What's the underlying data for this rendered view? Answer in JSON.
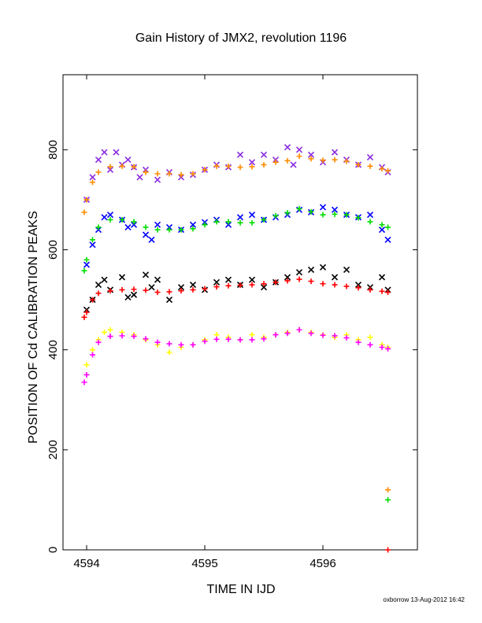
{
  "chart_data": {
    "type": "scatter",
    "title": "Gain History of JMX2, revolution 1196",
    "xlabel": "TIME IN IJD",
    "ylabel": "POSITION OF Cd CALIBRATION PEAKS",
    "xlim": [
      4593.8,
      4596.8
    ],
    "ylim": [
      0,
      950
    ],
    "xticks": [
      4594,
      4595,
      4596
    ],
    "yticks": [
      0,
      200,
      400,
      600,
      800
    ],
    "grid": false,
    "legend": "none",
    "series": [
      {
        "color": "#8a2be2",
        "marker": "x",
        "points": [
          [
            4594.0,
            700
          ],
          [
            4594.05,
            745
          ],
          [
            4594.1,
            780
          ],
          [
            4594.15,
            795
          ],
          [
            4594.2,
            760
          ],
          [
            4594.25,
            795
          ],
          [
            4594.3,
            770
          ],
          [
            4594.35,
            780
          ],
          [
            4594.4,
            765
          ],
          [
            4594.45,
            745
          ],
          [
            4594.5,
            760
          ],
          [
            4594.6,
            740
          ],
          [
            4594.7,
            755
          ],
          [
            4594.8,
            745
          ],
          [
            4594.9,
            750
          ],
          [
            4595.0,
            760
          ],
          [
            4595.1,
            770
          ],
          [
            4595.2,
            765
          ],
          [
            4595.3,
            790
          ],
          [
            4595.4,
            775
          ],
          [
            4595.5,
            790
          ],
          [
            4595.6,
            780
          ],
          [
            4595.7,
            805
          ],
          [
            4595.75,
            770
          ],
          [
            4595.8,
            800
          ],
          [
            4595.9,
            790
          ],
          [
            4596.0,
            775
          ],
          [
            4596.1,
            795
          ],
          [
            4596.2,
            780
          ],
          [
            4596.3,
            770
          ],
          [
            4596.4,
            785
          ],
          [
            4596.5,
            765
          ],
          [
            4596.55,
            755
          ]
        ]
      },
      {
        "color": "#ff8c00",
        "marker": "+",
        "points": [
          [
            4593.98,
            675
          ],
          [
            4594.0,
            700
          ],
          [
            4594.05,
            735
          ],
          [
            4594.1,
            755
          ],
          [
            4594.2,
            766
          ],
          [
            4594.3,
            767
          ],
          [
            4594.4,
            766
          ],
          [
            4594.5,
            755
          ],
          [
            4594.6,
            752
          ],
          [
            4594.7,
            752
          ],
          [
            4594.8,
            750
          ],
          [
            4594.9,
            752
          ],
          [
            4595.0,
            760
          ],
          [
            4595.1,
            767
          ],
          [
            4595.2,
            767
          ],
          [
            4595.3,
            765
          ],
          [
            4595.4,
            766
          ],
          [
            4595.5,
            770
          ],
          [
            4595.6,
            775
          ],
          [
            4595.7,
            778
          ],
          [
            4595.8,
            787
          ],
          [
            4595.9,
            782
          ],
          [
            4596.0,
            779
          ],
          [
            4596.1,
            780
          ],
          [
            4596.2,
            777
          ],
          [
            4596.3,
            770
          ],
          [
            4596.4,
            767
          ],
          [
            4596.5,
            762
          ],
          [
            4596.55,
            758
          ]
        ]
      },
      {
        "color": "#0000ff",
        "marker": "x",
        "points": [
          [
            4594.0,
            570
          ],
          [
            4594.05,
            610
          ],
          [
            4594.1,
            640
          ],
          [
            4594.15,
            665
          ],
          [
            4594.2,
            670
          ],
          [
            4594.3,
            660
          ],
          [
            4594.35,
            645
          ],
          [
            4594.4,
            650
          ],
          [
            4594.5,
            630
          ],
          [
            4594.55,
            620
          ],
          [
            4594.6,
            650
          ],
          [
            4594.7,
            645
          ],
          [
            4594.8,
            640
          ],
          [
            4594.9,
            650
          ],
          [
            4595.0,
            655
          ],
          [
            4595.1,
            660
          ],
          [
            4595.2,
            650
          ],
          [
            4595.3,
            665
          ],
          [
            4595.4,
            670
          ],
          [
            4595.5,
            660
          ],
          [
            4595.6,
            665
          ],
          [
            4595.7,
            670
          ],
          [
            4595.8,
            680
          ],
          [
            4595.9,
            675
          ],
          [
            4596.0,
            685
          ],
          [
            4596.1,
            680
          ],
          [
            4596.2,
            670
          ],
          [
            4596.3,
            665
          ],
          [
            4596.4,
            670
          ],
          [
            4596.5,
            640
          ],
          [
            4596.55,
            620
          ]
        ]
      },
      {
        "color": "#00dd00",
        "marker": "+",
        "points": [
          [
            4593.98,
            558
          ],
          [
            4594.0,
            580
          ],
          [
            4594.05,
            620
          ],
          [
            4594.1,
            645
          ],
          [
            4594.2,
            660
          ],
          [
            4594.3,
            660
          ],
          [
            4594.4,
            656
          ],
          [
            4594.5,
            645
          ],
          [
            4594.6,
            640
          ],
          [
            4594.7,
            640
          ],
          [
            4594.8,
            640
          ],
          [
            4594.9,
            642
          ],
          [
            4595.0,
            650
          ],
          [
            4595.1,
            656
          ],
          [
            4595.2,
            656
          ],
          [
            4595.3,
            654
          ],
          [
            4595.4,
            654
          ],
          [
            4595.5,
            660
          ],
          [
            4595.6,
            668
          ],
          [
            4595.7,
            674
          ],
          [
            4595.8,
            682
          ],
          [
            4595.9,
            676
          ],
          [
            4596.0,
            670
          ],
          [
            4596.1,
            671
          ],
          [
            4596.2,
            670
          ],
          [
            4596.3,
            664
          ],
          [
            4596.4,
            656
          ],
          [
            4596.5,
            650
          ],
          [
            4596.55,
            645
          ]
        ]
      },
      {
        "color": "#000000",
        "marker": "x",
        "points": [
          [
            4594.0,
            480
          ],
          [
            4594.05,
            500
          ],
          [
            4594.1,
            530
          ],
          [
            4594.15,
            540
          ],
          [
            4594.2,
            520
          ],
          [
            4594.3,
            545
          ],
          [
            4594.35,
            505
          ],
          [
            4594.4,
            510
          ],
          [
            4594.5,
            550
          ],
          [
            4594.55,
            525
          ],
          [
            4594.6,
            540
          ],
          [
            4594.7,
            500
          ],
          [
            4594.8,
            525
          ],
          [
            4594.9,
            530
          ],
          [
            4595.0,
            520
          ],
          [
            4595.1,
            535
          ],
          [
            4595.2,
            540
          ],
          [
            4595.3,
            530
          ],
          [
            4595.4,
            540
          ],
          [
            4595.5,
            525
          ],
          [
            4595.6,
            535
          ],
          [
            4595.7,
            545
          ],
          [
            4595.8,
            555
          ],
          [
            4595.9,
            560
          ],
          [
            4596.0,
            565
          ],
          [
            4596.1,
            545
          ],
          [
            4596.2,
            560
          ],
          [
            4596.3,
            530
          ],
          [
            4596.4,
            525
          ],
          [
            4596.5,
            545
          ],
          [
            4596.55,
            520
          ]
        ]
      },
      {
        "color": "#ff0000",
        "marker": "+",
        "points": [
          [
            4593.98,
            465
          ],
          [
            4594.0,
            475
          ],
          [
            4594.05,
            500
          ],
          [
            4594.1,
            513
          ],
          [
            4594.2,
            518
          ],
          [
            4594.3,
            520
          ],
          [
            4594.4,
            521
          ],
          [
            4594.5,
            519
          ],
          [
            4594.6,
            515
          ],
          [
            4594.7,
            516
          ],
          [
            4594.8,
            518
          ],
          [
            4594.9,
            520
          ],
          [
            4595.0,
            522
          ],
          [
            4595.1,
            526
          ],
          [
            4595.2,
            528
          ],
          [
            4595.3,
            529
          ],
          [
            4595.4,
            530
          ],
          [
            4595.5,
            532
          ],
          [
            4595.6,
            535
          ],
          [
            4595.7,
            538
          ],
          [
            4595.8,
            541
          ],
          [
            4595.9,
            537
          ],
          [
            4596.0,
            532
          ],
          [
            4596.1,
            530
          ],
          [
            4596.2,
            527
          ],
          [
            4596.3,
            524
          ],
          [
            4596.4,
            520
          ],
          [
            4596.5,
            517
          ],
          [
            4596.55,
            515
          ]
        ]
      },
      {
        "color": "#ffff00",
        "marker": "+",
        "points": [
          [
            4594.0,
            370
          ],
          [
            4594.05,
            400
          ],
          [
            4594.1,
            420
          ],
          [
            4594.15,
            435
          ],
          [
            4594.2,
            440
          ],
          [
            4594.3,
            435
          ],
          [
            4594.4,
            430
          ],
          [
            4594.5,
            420
          ],
          [
            4594.6,
            410
          ],
          [
            4594.7,
            395
          ],
          [
            4594.8,
            405
          ],
          [
            4594.9,
            410
          ],
          [
            4595.0,
            420
          ],
          [
            4595.1,
            430
          ],
          [
            4595.2,
            425
          ],
          [
            4595.3,
            420
          ],
          [
            4595.4,
            430
          ],
          [
            4595.5,
            425
          ],
          [
            4595.6,
            430
          ],
          [
            4595.7,
            435
          ],
          [
            4595.8,
            440
          ],
          [
            4595.9,
            435
          ],
          [
            4596.0,
            430
          ],
          [
            4596.1,
            425
          ],
          [
            4596.2,
            430
          ],
          [
            4596.3,
            420
          ],
          [
            4596.4,
            425
          ],
          [
            4596.5,
            410
          ],
          [
            4596.55,
            405
          ]
        ]
      },
      {
        "color": "#ff00ff",
        "marker": "+",
        "points": [
          [
            4593.98,
            335
          ],
          [
            4594.0,
            350
          ],
          [
            4594.05,
            390
          ],
          [
            4594.1,
            415
          ],
          [
            4594.2,
            427
          ],
          [
            4594.3,
            428
          ],
          [
            4594.4,
            427
          ],
          [
            4594.5,
            422
          ],
          [
            4594.6,
            415
          ],
          [
            4594.7,
            412
          ],
          [
            4594.8,
            410
          ],
          [
            4594.9,
            410
          ],
          [
            4595.0,
            417
          ],
          [
            4595.1,
            421
          ],
          [
            4595.2,
            421
          ],
          [
            4595.3,
            420
          ],
          [
            4595.4,
            420
          ],
          [
            4595.5,
            422
          ],
          [
            4595.6,
            430
          ],
          [
            4595.7,
            433
          ],
          [
            4595.8,
            440
          ],
          [
            4595.9,
            433
          ],
          [
            4596.0,
            429
          ],
          [
            4596.1,
            428
          ],
          [
            4596.2,
            424
          ],
          [
            4596.3,
            415
          ],
          [
            4596.4,
            410
          ],
          [
            4596.5,
            405
          ],
          [
            4596.55,
            402
          ]
        ]
      },
      {
        "color": "#ff8c00",
        "marker": "+",
        "points": [
          [
            4596.55,
            120
          ]
        ]
      },
      {
        "color": "#00dd00",
        "marker": "+",
        "points": [
          [
            4596.55,
            100
          ]
        ]
      },
      {
        "color": "#ff0000",
        "marker": "+",
        "points": [
          [
            4596.55,
            0
          ]
        ]
      }
    ]
  },
  "footer": {
    "credit": "oxborrow 13-Aug-2012 16:42"
  }
}
